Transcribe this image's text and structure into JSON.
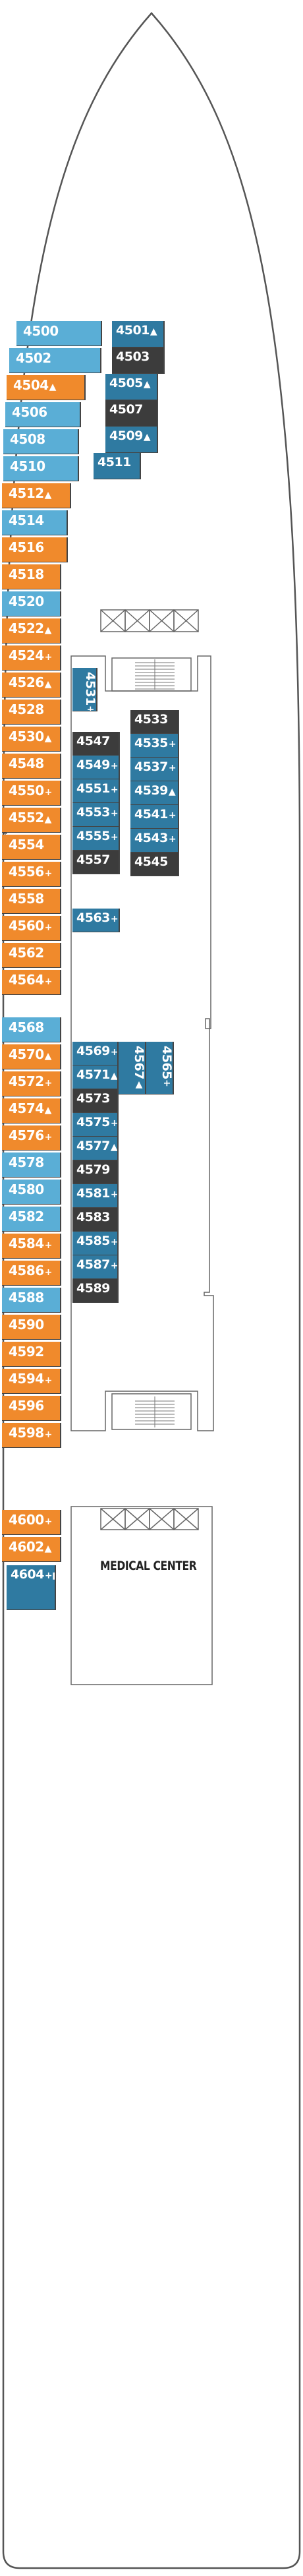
{
  "map": {
    "medical_center": "MEDICAL CENTER",
    "colors": {
      "outline": "#555555",
      "blue": "#5aaed6",
      "orange": "#f08a2c",
      "teal": "#2f7aa1",
      "dark": "#3c3c3c"
    }
  },
  "cabins": [
    {
      "num": "4500",
      "sym": ""
    },
    {
      "num": "4502",
      "sym": ""
    },
    {
      "num": "4504",
      "sym": "▲"
    },
    {
      "num": "4506",
      "sym": ""
    },
    {
      "num": "4508",
      "sym": ""
    },
    {
      "num": "4510",
      "sym": ""
    },
    {
      "num": "4512",
      "sym": "▲"
    },
    {
      "num": "4514",
      "sym": ""
    },
    {
      "num": "4516",
      "sym": ""
    },
    {
      "num": "4518",
      "sym": ""
    },
    {
      "num": "4520",
      "sym": ""
    },
    {
      "num": "4522",
      "sym": "▲"
    },
    {
      "num": "4524",
      "sym": "+"
    },
    {
      "num": "4526",
      "sym": "▲"
    },
    {
      "num": "4528",
      "sym": ""
    },
    {
      "num": "4530",
      "sym": "▲"
    },
    {
      "num": "4548",
      "sym": ""
    },
    {
      "num": "4550",
      "sym": "+"
    },
    {
      "num": "4552",
      "sym": "▲"
    },
    {
      "num": "4554",
      "sym": ""
    },
    {
      "num": "4556",
      "sym": "+"
    },
    {
      "num": "4558",
      "sym": ""
    },
    {
      "num": "4560",
      "sym": "+"
    },
    {
      "num": "4562",
      "sym": ""
    },
    {
      "num": "4564",
      "sym": "+"
    },
    {
      "num": "4568",
      "sym": ""
    },
    {
      "num": "4570",
      "sym": "▲"
    },
    {
      "num": "4572",
      "sym": "+"
    },
    {
      "num": "4574",
      "sym": "▲"
    },
    {
      "num": "4576",
      "sym": "+"
    },
    {
      "num": "4578",
      "sym": ""
    },
    {
      "num": "4580",
      "sym": ""
    },
    {
      "num": "4582",
      "sym": ""
    },
    {
      "num": "4584",
      "sym": "+"
    },
    {
      "num": "4586",
      "sym": "+"
    },
    {
      "num": "4588",
      "sym": ""
    },
    {
      "num": "4590",
      "sym": ""
    },
    {
      "num": "4592",
      "sym": ""
    },
    {
      "num": "4594",
      "sym": "+"
    },
    {
      "num": "4596",
      "sym": ""
    },
    {
      "num": "4598",
      "sym": "+"
    },
    {
      "num": "4600",
      "sym": "+"
    },
    {
      "num": "4602",
      "sym": "▲"
    },
    {
      "num": "4604",
      "sym": "+■"
    },
    {
      "num": "4501",
      "sym": "▲"
    },
    {
      "num": "4503",
      "sym": ""
    },
    {
      "num": "4505",
      "sym": "▲"
    },
    {
      "num": "4507",
      "sym": ""
    },
    {
      "num": "4509",
      "sym": "▲"
    },
    {
      "num": "4511",
      "sym": ""
    },
    {
      "num": "4531",
      "sym": "+"
    },
    {
      "num": "4533",
      "sym": ""
    },
    {
      "num": "4535",
      "sym": "+"
    },
    {
      "num": "4537",
      "sym": "+"
    },
    {
      "num": "4539",
      "sym": "▲"
    },
    {
      "num": "4541",
      "sym": "+"
    },
    {
      "num": "4543",
      "sym": "+"
    },
    {
      "num": "4545",
      "sym": ""
    },
    {
      "num": "4547",
      "sym": ""
    },
    {
      "num": "4549",
      "sym": "+"
    },
    {
      "num": "4551",
      "sym": "+"
    },
    {
      "num": "4553",
      "sym": "+"
    },
    {
      "num": "4555",
      "sym": "+"
    },
    {
      "num": "4557",
      "sym": ""
    },
    {
      "num": "4563",
      "sym": "+"
    },
    {
      "num": "4565",
      "sym": "+"
    },
    {
      "num": "4567",
      "sym": "▲"
    },
    {
      "num": "4569",
      "sym": "+"
    },
    {
      "num": "4571",
      "sym": "▲"
    },
    {
      "num": "4573",
      "sym": ""
    },
    {
      "num": "4575",
      "sym": "+"
    },
    {
      "num": "4577",
      "sym": "▲"
    },
    {
      "num": "4579",
      "sym": ""
    },
    {
      "num": "4581",
      "sym": "+"
    },
    {
      "num": "4583",
      "sym": ""
    },
    {
      "num": "4585",
      "sym": "+"
    },
    {
      "num": "4587",
      "sym": "+"
    },
    {
      "num": "4589",
      "sym": ""
    }
  ]
}
